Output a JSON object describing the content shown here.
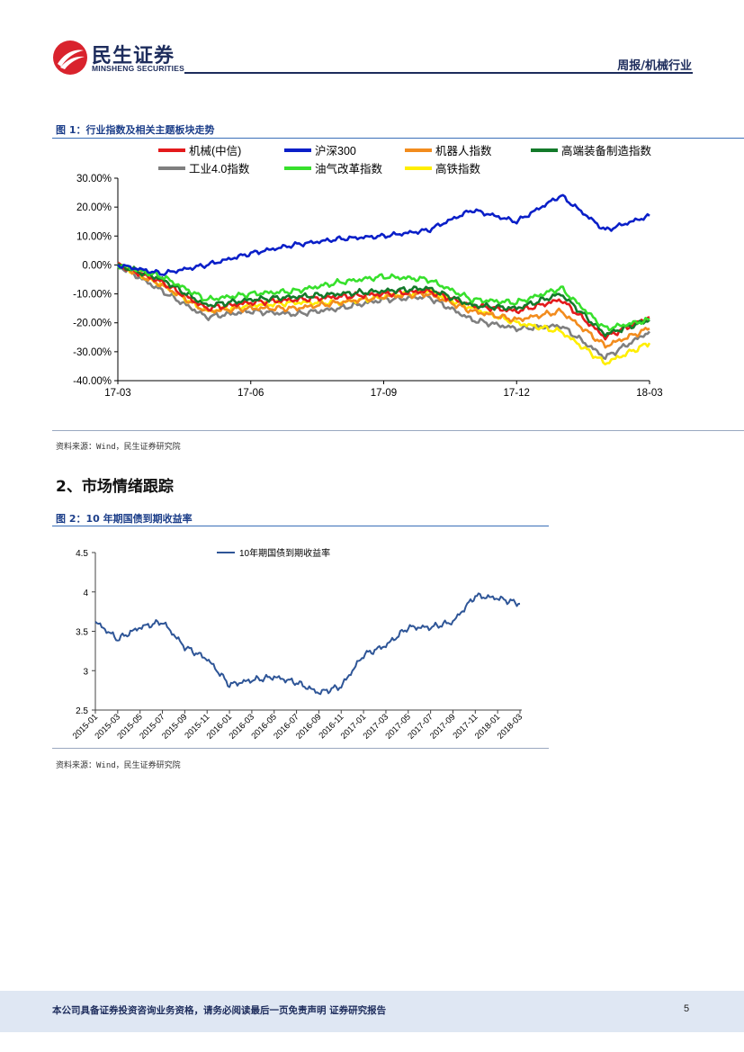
{
  "header": {
    "logo_cn": "民生证券",
    "logo_en": "MINSHENG SECURITIES",
    "report_tag": "周报/机械行业"
  },
  "figure1": {
    "title": "图 1：行业指数及相关主题板块走势",
    "source": "资料来源：Wind，民生证券研究院"
  },
  "section": {
    "heading": "2、市场情绪跟踪"
  },
  "figure2": {
    "title": "图 2：10 年期国债到期收益率",
    "source": "资料来源：Wind，民生证券研究院"
  },
  "footer": {
    "disclaimer": "本公司具备证券投资咨询业务资格，请务必阅读最后一页免责声明 证券研究报告",
    "page_number": "5"
  },
  "colors": {
    "brand_navy": "#1d2c5c",
    "brand_red": "#d9232d",
    "title_blue": "#1d3f8a"
  },
  "chart_data": [
    {
      "type": "line",
      "x": [
        "17-03",
        "17-04",
        "17-05",
        "17-06",
        "17-07",
        "17-08",
        "17-09",
        "17-10",
        "17-11",
        "17-12",
        "18-01",
        "18-02",
        "18-03"
      ],
      "x_ticks": [
        "17-03",
        "17-06",
        "17-09",
        "17-12",
        "18-03"
      ],
      "y_ticks": [
        "30.00%",
        "20.00%",
        "10.00%",
        "0.00%",
        "-10.00%",
        "-20.00%",
        "-30.00%",
        "-40.00%"
      ],
      "ylim": [
        -40,
        30
      ],
      "unit": "%",
      "legend_position": "top",
      "series": [
        {
          "name": "机械(中信)",
          "color": "#e31a1c",
          "values": [
            0,
            -6,
            -15,
            -13,
            -12,
            -11,
            -10,
            -9,
            -14,
            -16,
            -12,
            -25,
            -18
          ]
        },
        {
          "name": "沪深300",
          "color": "#0a1fc8",
          "values": [
            0,
            -3,
            0,
            4,
            7,
            9,
            10,
            12,
            19,
            15,
            24,
            12,
            17
          ]
        },
        {
          "name": "机器人指数",
          "color": "#f28c1e",
          "values": [
            0,
            -7,
            -16,
            -15,
            -15,
            -13,
            -11,
            -10,
            -16,
            -19,
            -16,
            -28,
            -22
          ]
        },
        {
          "name": "高端装备制造指数",
          "color": "#137a2a",
          "values": [
            0,
            -5,
            -14,
            -12,
            -11,
            -10,
            -9,
            -8,
            -14,
            -15,
            -10,
            -24,
            -19
          ]
        },
        {
          "name": "工业4.0指数",
          "color": "#7f7f7f",
          "values": [
            0,
            -9,
            -18,
            -16,
            -17,
            -15,
            -12,
            -11,
            -19,
            -22,
            -21,
            -32,
            -23
          ]
        },
        {
          "name": "油气改革指数",
          "color": "#37e02c",
          "values": [
            0,
            -4,
            -12,
            -10,
            -9,
            -6,
            -4,
            -5,
            -12,
            -13,
            -8,
            -22,
            -19
          ]
        },
        {
          "name": "高铁指数",
          "color": "#ffee00",
          "values": [
            0,
            -7,
            -16,
            -14,
            -13,
            -13,
            -11,
            -9,
            -15,
            -20,
            -23,
            -34,
            -27
          ]
        }
      ]
    },
    {
      "type": "line",
      "x": [
        "2015-01",
        "2015-03",
        "2015-05",
        "2015-07",
        "2015-09",
        "2015-11",
        "2016-01",
        "2016-03",
        "2016-05",
        "2016-07",
        "2016-09",
        "2016-11",
        "2017-01",
        "2017-03",
        "2017-05",
        "2017-07",
        "2017-09",
        "2017-11",
        "2018-01",
        "2018-03"
      ],
      "x_ticks": [
        "2015-01",
        "2015-03",
        "2015-05",
        "2015-07",
        "2015-09",
        "2015-11",
        "2016-01",
        "2016-03",
        "2016-05",
        "2016-07",
        "2016-09",
        "2016-11",
        "2017-01",
        "2017-03",
        "2017-05",
        "2017-07",
        "2017-09",
        "2017-11",
        "2018-01",
        "2018-03"
      ],
      "y_ticks": [
        "4.5",
        "4",
        "3.5",
        "3",
        "2.5"
      ],
      "ylim": [
        2.5,
        4.5
      ],
      "legend_position": "top",
      "series": [
        {
          "name": "10年期国债到期收益率",
          "color": "#2e5597",
          "values": [
            3.62,
            3.4,
            3.55,
            3.62,
            3.3,
            3.15,
            2.82,
            2.88,
            2.92,
            2.85,
            2.72,
            2.8,
            3.2,
            3.32,
            3.55,
            3.55,
            3.62,
            3.95,
            3.92,
            3.85
          ]
        }
      ]
    }
  ]
}
